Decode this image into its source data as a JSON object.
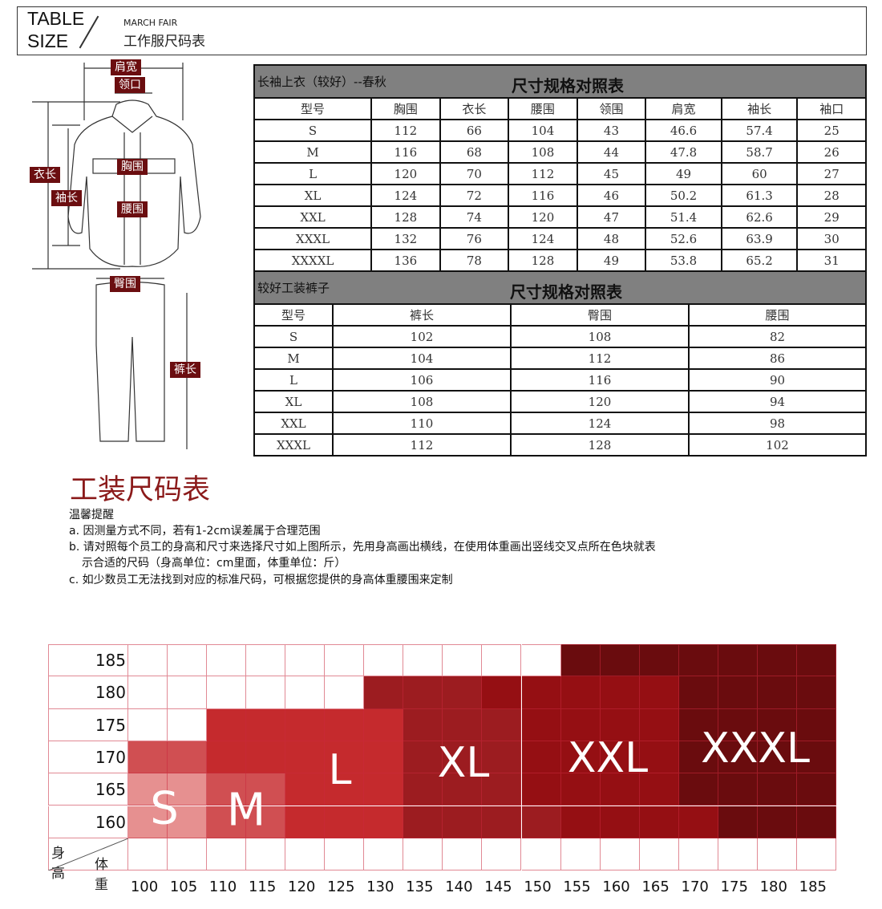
{
  "header": {
    "title_en_line1": "TABLE",
    "title_en_line2": "SIZE",
    "brand": "MARCH FAIR",
    "title_cn": "工作服尺码表"
  },
  "illustration": {
    "labels": {
      "shoulder": "肩宽",
      "collar": "领口",
      "chest": "胸围",
      "length": "衣长",
      "sleeve": "袖长",
      "waist": "腰围",
      "hip": "臀围",
      "pants_length": "裤长"
    }
  },
  "jacket_table": {
    "subtitle": "长袖上衣（较好）--春秋",
    "title": "尺寸规格对照表",
    "headers": [
      "型号",
      "胸围",
      "衣长",
      "腰围",
      "领围",
      "肩宽",
      "袖长",
      "袖口"
    ],
    "rows": [
      [
        "S",
        "112",
        "66",
        "104",
        "43",
        "46.6",
        "57.4",
        "25"
      ],
      [
        "M",
        "116",
        "68",
        "108",
        "44",
        "47.8",
        "58.7",
        "26"
      ],
      [
        "L",
        "120",
        "70",
        "112",
        "45",
        "49",
        "60",
        "27"
      ],
      [
        "XL",
        "124",
        "72",
        "116",
        "46",
        "50.2",
        "61.3",
        "28"
      ],
      [
        "XXL",
        "128",
        "74",
        "120",
        "47",
        "51.4",
        "62.6",
        "29"
      ],
      [
        "XXXL",
        "132",
        "76",
        "124",
        "48",
        "52.6",
        "63.9",
        "30"
      ],
      [
        "XXXXL",
        "136",
        "78",
        "128",
        "49",
        "53.8",
        "65.2",
        "31"
      ]
    ]
  },
  "pants_table": {
    "subtitle": "较好工装裤子",
    "title": "尺寸规格对照表",
    "headers": [
      "型号",
      "裤长",
      "臀围",
      "腰围"
    ],
    "rows": [
      [
        "S",
        "102",
        "108",
        "82"
      ],
      [
        "M",
        "104",
        "112",
        "86"
      ],
      [
        "L",
        "106",
        "116",
        "90"
      ],
      [
        "XL",
        "108",
        "120",
        "94"
      ],
      [
        "XXL",
        "110",
        "124",
        "98"
      ],
      [
        "XXXL",
        "112",
        "128",
        "102"
      ]
    ]
  },
  "guide": {
    "title": "工装尺码表",
    "reminder": "温馨提醒",
    "notes": [
      "a. 因测量方式不同，若有1-2cm误差属于合理范围",
      "b. 请对照每个员工的身高和尺寸来选择尺寸如上图所示，先用身高画出横线，在使用体重画出竖线交叉点所在色块就表",
      "    示合适的尺码（身高单位：cm里面，体重单位：斤）",
      "c. 如少数员工无法找到对应的标准尺码，可根据您提供的身高体重腰围来定制"
    ]
  },
  "size_grid": {
    "row_axis_label": "身高",
    "col_axis_label": "体重",
    "heights": [
      "185",
      "180",
      "175",
      "170",
      "165",
      "160"
    ],
    "weights": [
      "100",
      "105",
      "110",
      "115",
      "120",
      "125",
      "130",
      "135",
      "140",
      "145",
      "150",
      "155",
      "160",
      "165",
      "170",
      "175",
      "180",
      "185"
    ],
    "cells": [
      [
        "",
        "",
        "",
        "",
        "",
        "",
        "",
        "",
        "",
        "",
        "",
        "XXXL",
        "XXXL",
        "XXXL",
        "XXXL",
        "XXXL",
        "XXXL",
        "XXXL"
      ],
      [
        "",
        "",
        "",
        "",
        "",
        "",
        "XL",
        "XL",
        "XL",
        "XXL",
        "XXL",
        "XXL",
        "XXL",
        "XXL",
        "XXXL",
        "XXXL",
        "XXXL",
        "XXXL"
      ],
      [
        "",
        "",
        "L",
        "L",
        "L",
        "L",
        "L",
        "XL",
        "XL",
        "XL",
        "XXL",
        "XXL",
        "XXL",
        "XXL",
        "XXXL",
        "XXXL",
        "XXXL",
        "XXXL"
      ],
      [
        "M",
        "M",
        "L",
        "L",
        "L",
        "L",
        "L",
        "XL",
        "XL",
        "XL",
        "XXL",
        "XXL",
        "XXL",
        "XXL",
        "XXXL",
        "XXXL",
        "XXXL",
        "XXXL"
      ],
      [
        "S",
        "S",
        "M",
        "M",
        "L",
        "L",
        "L",
        "XL",
        "XL",
        "XL",
        "XXL",
        "XXL",
        "XXL",
        "XXL",
        "XXXL",
        "XXXL",
        "XXXL",
        "XXXL"
      ],
      [
        "S",
        "S",
        "M",
        "M",
        "L",
        "L",
        "L",
        "XL",
        "XL",
        "XL",
        "XL",
        "XXL",
        "XXL",
        "XXL",
        "XXL",
        "XXXL",
        "XXXL",
        "XXXL"
      ]
    ],
    "colors": {
      "S": "#e69090",
      "M": "#d04f52",
      "L": "#c52a2d",
      "XL": "#9c1c20",
      "XXL": "#950f13",
      "XXXL": "#6a0c0e"
    },
    "size_labels": [
      "S",
      "M",
      "L",
      "XL",
      "XXL",
      "XXXL"
    ]
  }
}
